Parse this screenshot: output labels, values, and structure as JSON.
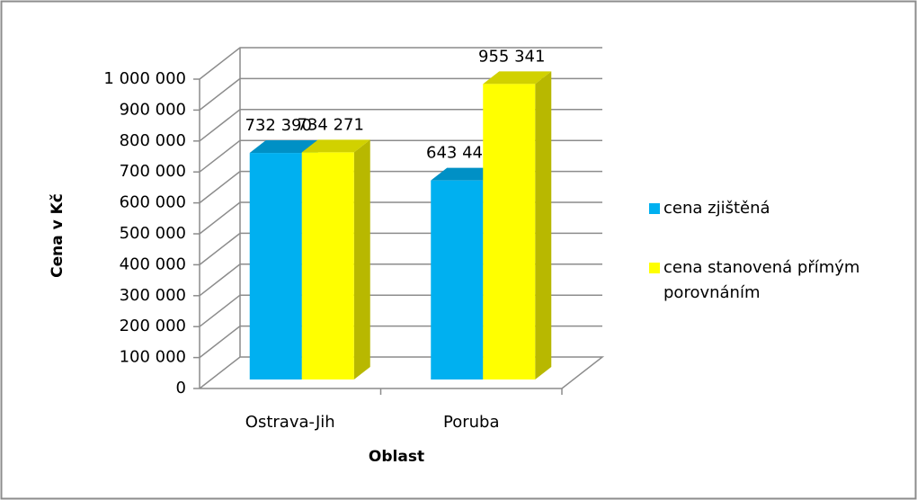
{
  "chart_data": {
    "type": "bar3d",
    "xlabel": "Oblast",
    "ylabel": "Cena v Kč",
    "categories": [
      "Ostrava-Jih",
      "Poruba"
    ],
    "series": [
      {
        "name": "cena zjištěná",
        "color": "#00b0f0",
        "values": [
          732390,
          643440
        ],
        "value_labels": [
          "732 390",
          "643 440"
        ]
      },
      {
        "name": "cena stanovená přímým porovnáním",
        "color": "#ffff00",
        "values": [
          734271,
          955341
        ],
        "value_labels": [
          "734 271",
          "955 341"
        ]
      }
    ],
    "ylim": [
      0,
      1000000
    ],
    "yticks": [
      0,
      {
        "value": 100000,
        "label": "100 000"
      },
      {
        "value": 200000,
        "label": "200 000"
      },
      {
        "value": 300000,
        "label": "300 000"
      },
      {
        "value": 400000,
        "label": "400 000"
      },
      {
        "value": 500000,
        "label": "500 000"
      },
      {
        "value": 600000,
        "label": "600 000"
      },
      {
        "value": 700000,
        "label": "700 000"
      },
      {
        "value": 800000,
        "label": "800 000"
      },
      {
        "value": 900000,
        "label": "900 000"
      },
      {
        "value": 1000000,
        "label": "1 000 000"
      }
    ],
    "grid": true,
    "legend": "right"
  }
}
